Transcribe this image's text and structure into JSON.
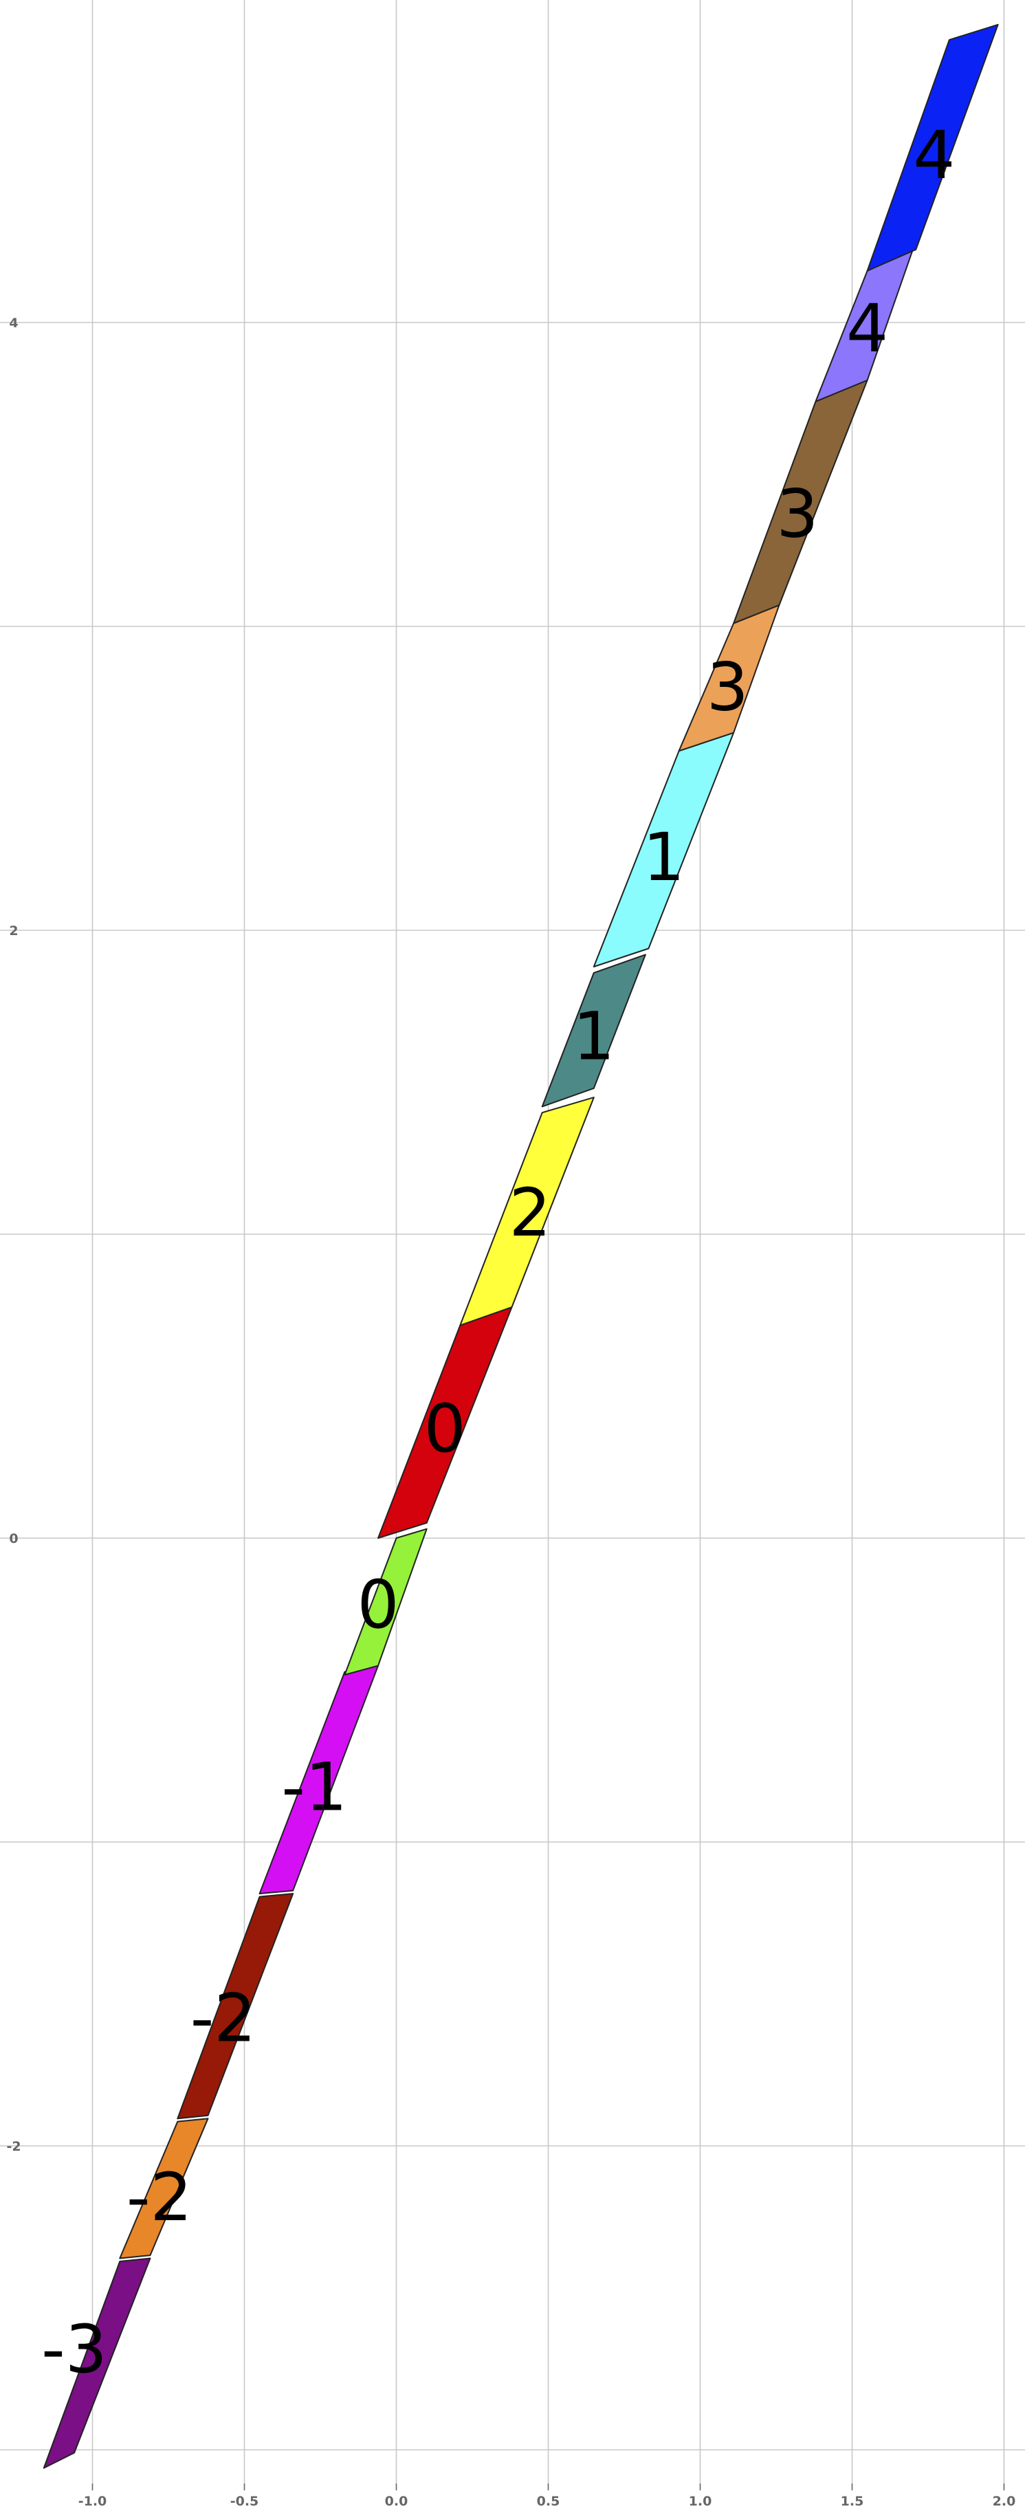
{
  "axes": {
    "xlim": [
      -1.1,
      2.05
    ],
    "ylim": [
      -3.1,
      5.15
    ],
    "grid": true,
    "x_ticks": [
      {
        "value": -1.0,
        "label": "-1.0"
      },
      {
        "value": -0.5,
        "label": "-0.5"
      },
      {
        "value": 0.0,
        "label": "0.0"
      },
      {
        "value": 0.5,
        "label": "0.5"
      },
      {
        "value": 1.0,
        "label": "1.0"
      },
      {
        "value": 1.5,
        "label": "1.5"
      },
      {
        "value": 2.0,
        "label": "2.0"
      }
    ],
    "y_ticks": [
      {
        "value": -2,
        "label": "-2"
      },
      {
        "value": 0,
        "label": "0"
      },
      {
        "value": 2,
        "label": "2"
      },
      {
        "value": 4,
        "label": "4"
      }
    ],
    "x_minor_grid": [
      -1.0,
      -0.5,
      0.0,
      0.5,
      1.0,
      1.5,
      2.0
    ],
    "y_minor_grid": [
      -3.0,
      -2.0,
      -1.0,
      0.0,
      1.0,
      2.0,
      3.0,
      4.0
    ]
  },
  "segments": [
    {
      "label": "-3",
      "color": "#7a0f86",
      "poly": [
        [
          -1.16,
          -3.06
        ],
        [
          -1.06,
          -3.01
        ],
        [
          -0.81,
          -2.37
        ],
        [
          -0.91,
          -2.38
        ]
      ],
      "text_pos": [
        -1.06,
        -2.67
      ]
    },
    {
      "label": "-2",
      "color": "#e8862a",
      "poly": [
        [
          -0.91,
          -2.37
        ],
        [
          -0.81,
          -2.36
        ],
        [
          -0.62,
          -1.91
        ],
        [
          -0.72,
          -1.92
        ]
      ],
      "text_pos": [
        -0.78,
        -2.17
      ]
    },
    {
      "label": "-2",
      "color": "#961a07",
      "poly": [
        [
          -0.72,
          -1.91
        ],
        [
          -0.62,
          -1.9
        ],
        [
          -0.34,
          -1.17
        ],
        [
          -0.45,
          -1.18
        ]
      ],
      "text_pos": [
        -0.57,
        -1.58
      ]
    },
    {
      "label": "-1",
      "color": "#d40ff4",
      "poly": [
        [
          -0.45,
          -1.17
        ],
        [
          -0.34,
          -1.16
        ],
        [
          -0.06,
          -0.42
        ],
        [
          -0.17,
          -0.44
        ]
      ],
      "text_pos": [
        -0.27,
        -0.82
      ]
    },
    {
      "label": "0",
      "color": "#95f139",
      "poly": [
        [
          -0.17,
          -0.45
        ],
        [
          -0.06,
          -0.42
        ],
        [
          0.1,
          0.03
        ],
        [
          0.0,
          0.0
        ]
      ],
      "text_pos": [
        -0.06,
        -0.22
      ]
    },
    {
      "label": "0",
      "color": "#d3020d",
      "poly": [
        [
          -0.06,
          0.0
        ],
        [
          0.1,
          0.05
        ],
        [
          0.38,
          0.76
        ],
        [
          0.21,
          0.7
        ]
      ],
      "text_pos": [
        0.16,
        0.36
      ]
    },
    {
      "label": "2",
      "color": "#ffff3b",
      "poly": [
        [
          0.21,
          0.7
        ],
        [
          0.38,
          0.76
        ],
        [
          0.65,
          1.45
        ],
        [
          0.48,
          1.4
        ]
      ],
      "text_pos": [
        0.44,
        1.07
      ]
    },
    {
      "label": "1",
      "color": "#4d8987",
      "poly": [
        [
          0.48,
          1.42
        ],
        [
          0.65,
          1.48
        ],
        [
          0.82,
          1.92
        ],
        [
          0.65,
          1.86
        ]
      ],
      "text_pos": [
        0.65,
        1.65
      ]
    },
    {
      "label": "1",
      "color": "#8bfcfd",
      "poly": [
        [
          0.65,
          1.88
        ],
        [
          0.83,
          1.94
        ],
        [
          1.11,
          2.65
        ],
        [
          0.93,
          2.59
        ]
      ],
      "text_pos": [
        0.88,
        2.24
      ]
    },
    {
      "label": "3",
      "color": "#eca158",
      "poly": [
        [
          0.93,
          2.59
        ],
        [
          1.11,
          2.65
        ],
        [
          1.26,
          3.07
        ],
        [
          1.11,
          3.01
        ]
      ],
      "text_pos": [
        1.09,
        2.8
      ]
    },
    {
      "label": "3",
      "color": "#8a653a",
      "poly": [
        [
          1.11,
          3.01
        ],
        [
          1.26,
          3.07
        ],
        [
          1.55,
          3.81
        ],
        [
          1.38,
          3.74
        ]
      ],
      "text_pos": [
        1.32,
        3.37
      ]
    },
    {
      "label": "4",
      "color": "#8b76fc",
      "poly": [
        [
          1.38,
          3.74
        ],
        [
          1.55,
          3.81
        ],
        [
          1.7,
          4.24
        ],
        [
          1.55,
          4.17
        ]
      ],
      "text_pos": [
        1.55,
        3.98
      ]
    },
    {
      "label": "4",
      "color": "#0b22f5",
      "poly": [
        [
          1.55,
          4.17
        ],
        [
          1.71,
          4.24
        ],
        [
          1.98,
          4.98
        ],
        [
          1.82,
          4.93
        ]
      ],
      "text_pos": [
        1.77,
        4.55
      ]
    }
  ]
}
